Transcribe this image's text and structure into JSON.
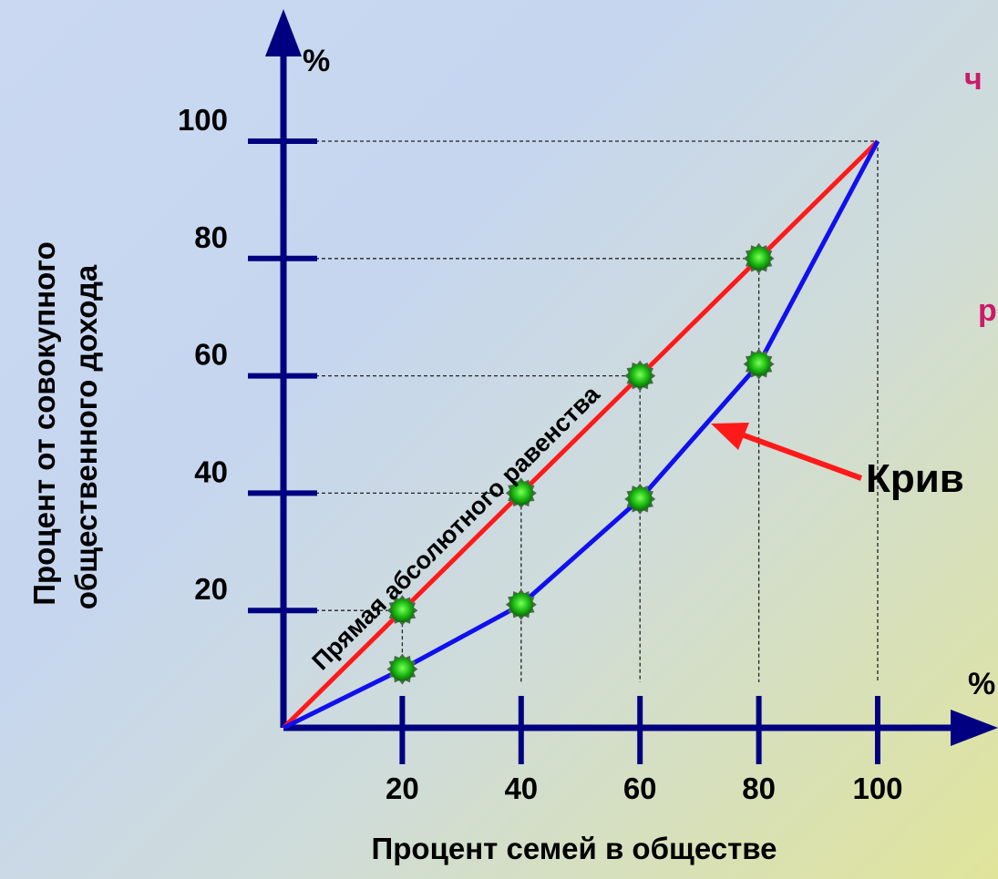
{
  "chart_data": {
    "type": "line",
    "x_unit": "%",
    "y_unit": "%",
    "x_ticks": [
      "20",
      "40",
      "60",
      "80",
      "100"
    ],
    "y_ticks": [
      "20",
      "40",
      "60",
      "80",
      "100"
    ],
    "xlim": [
      0,
      100
    ],
    "ylim": [
      0,
      100
    ],
    "xlabel": "Процент семей в обществе",
    "ylabel_line1": "Процент от совокупного",
    "ylabel_line2": "общественного дохода",
    "grid": "dashed guides at data points",
    "series": [
      {
        "name": "Прямая абсолютного равенства",
        "color": "#ff1a1a",
        "x": [
          0,
          20,
          40,
          60,
          80,
          100
        ],
        "y": [
          0,
          20,
          40,
          60,
          80,
          100
        ]
      },
      {
        "name": "",
        "color": "#1010ee",
        "x": [
          0,
          20,
          40,
          60,
          80,
          100
        ],
        "y": [
          0,
          10,
          21,
          39,
          62,
          100
        ]
      }
    ],
    "annotation": {
      "text": "Крив",
      "arrow_color": "#ff1a1a",
      "points_to": "second series"
    },
    "partial_texts": [
      "ч",
      "р"
    ],
    "axis_color": "#000080",
    "marker_color": "#22cc22"
  }
}
